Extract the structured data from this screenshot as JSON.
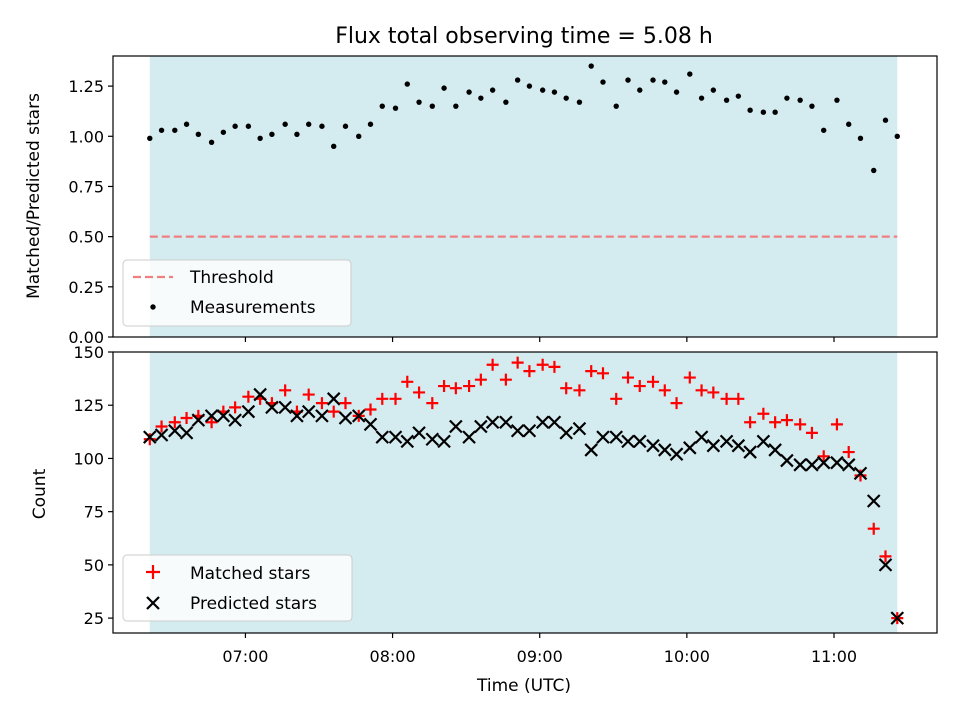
{
  "colors": {
    "span": "#d4ebf0",
    "threshold": "#f08080",
    "matched": "#ff0000",
    "predicted": "#000000",
    "measurement": "#000000"
  },
  "chart_data": [
    {
      "type": "scatter",
      "title": "Flux total observing time = 5.08 h",
      "xlabel": "",
      "ylabel": "Matched/Predicted stars",
      "xlim": [
        6.1,
        11.7
      ],
      "ylim": [
        0,
        1.4
      ],
      "yticks": [
        "0.00",
        "0.25",
        "0.50",
        "0.75",
        "1.00",
        "1.25"
      ],
      "ytick_values": [
        0,
        0.25,
        0.5,
        0.75,
        1.0,
        1.25
      ],
      "shaded_span": [
        6.35,
        11.43
      ],
      "threshold": 0.5,
      "legend": [
        "Threshold",
        "Measurements"
      ],
      "legend_loc": "lower-left",
      "x": [
        6.35,
        6.43,
        6.52,
        6.6,
        6.68,
        6.77,
        6.85,
        6.93,
        7.02,
        7.1,
        7.18,
        7.27,
        7.35,
        7.43,
        7.52,
        7.6,
        7.68,
        7.77,
        7.85,
        7.93,
        8.02,
        8.1,
        8.18,
        8.27,
        8.35,
        8.43,
        8.52,
        8.6,
        8.68,
        8.77,
        8.85,
        8.93,
        9.02,
        9.1,
        9.18,
        9.27,
        9.35,
        9.43,
        9.52,
        9.6,
        9.68,
        9.77,
        9.85,
        9.93,
        10.02,
        10.1,
        10.18,
        10.27,
        10.35,
        10.43,
        10.52,
        10.6,
        10.68,
        10.77,
        10.85,
        10.93,
        11.02,
        11.1,
        11.18,
        11.27,
        11.35,
        11.43
      ],
      "series": [
        {
          "name": "Measurements",
          "values": [
            0.99,
            1.03,
            1.03,
            1.06,
            1.01,
            0.97,
            1.02,
            1.05,
            1.05,
            0.99,
            1.01,
            1.06,
            1.01,
            1.06,
            1.05,
            0.95,
            1.05,
            1.0,
            1.06,
            1.15,
            1.14,
            1.26,
            1.17,
            1.15,
            1.24,
            1.15,
            1.22,
            1.19,
            1.23,
            1.17,
            1.28,
            1.25,
            1.23,
            1.22,
            1.19,
            1.17,
            1.35,
            1.27,
            1.15,
            1.28,
            1.23,
            1.28,
            1.27,
            1.22,
            1.31,
            1.19,
            1.23,
            1.18,
            1.2,
            1.13,
            1.12,
            1.12,
            1.19,
            1.18,
            1.15,
            1.03,
            1.18,
            1.06,
            0.99,
            0.83,
            1.08,
            1.0
          ]
        }
      ]
    },
    {
      "type": "scatter",
      "title": "",
      "xlabel": "Time (UTC)",
      "ylabel": "Count",
      "xlim": [
        6.1,
        11.7
      ],
      "ylim": [
        18,
        150
      ],
      "yticks": [
        "25",
        "50",
        "75",
        "100",
        "125",
        "150"
      ],
      "ytick_values": [
        25,
        50,
        75,
        100,
        125,
        150
      ],
      "xticks": [
        "07:00",
        "08:00",
        "09:00",
        "10:00",
        "11:00"
      ],
      "xtick_values": [
        7,
        8,
        9,
        10,
        11
      ],
      "shaded_span": [
        6.35,
        11.43
      ],
      "legend": [
        "Matched stars",
        "Predicted stars"
      ],
      "legend_loc": "lower-left",
      "x": [
        6.35,
        6.43,
        6.52,
        6.6,
        6.68,
        6.77,
        6.85,
        6.93,
        7.02,
        7.1,
        7.18,
        7.27,
        7.35,
        7.43,
        7.52,
        7.6,
        7.68,
        7.77,
        7.85,
        7.93,
        8.02,
        8.1,
        8.18,
        8.27,
        8.35,
        8.43,
        8.52,
        8.6,
        8.68,
        8.77,
        8.85,
        8.93,
        9.02,
        9.1,
        9.18,
        9.27,
        9.35,
        9.43,
        9.52,
        9.6,
        9.68,
        9.77,
        9.85,
        9.93,
        10.02,
        10.1,
        10.18,
        10.27,
        10.35,
        10.43,
        10.52,
        10.6,
        10.68,
        10.77,
        10.85,
        10.93,
        11.02,
        11.1,
        11.18,
        11.27,
        11.35,
        11.43
      ],
      "series": [
        {
          "name": "Matched stars",
          "values": [
            109,
            115,
            117,
            119,
            120,
            117,
            122,
            124,
            129,
            128,
            126,
            132,
            122,
            130,
            126,
            122,
            126,
            120,
            123,
            128,
            128,
            136,
            131,
            126,
            134,
            133,
            134,
            137,
            144,
            137,
            145,
            141,
            144,
            143,
            133,
            132,
            141,
            140,
            128,
            138,
            134,
            136,
            132,
            126,
            138,
            132,
            131,
            128,
            128,
            117,
            121,
            117,
            118,
            116,
            112,
            101,
            116,
            103,
            92,
            67,
            54,
            25
          ]
        },
        {
          "name": "Predicted stars",
          "values": [
            110,
            111,
            113,
            112,
            118,
            120,
            120,
            118,
            122,
            130,
            124,
            124,
            120,
            122,
            120,
            128,
            119,
            120,
            116,
            110,
            110,
            108,
            112,
            109,
            108,
            115,
            110,
            115,
            117,
            117,
            113,
            113,
            117,
            117,
            112,
            114,
            104,
            110,
            110,
            108,
            108,
            106,
            104,
            102,
            105,
            110,
            106,
            108,
            106,
            103,
            108,
            104,
            99,
            97,
            97,
            98,
            98,
            97,
            93,
            80,
            50,
            25
          ]
        }
      ]
    }
  ]
}
